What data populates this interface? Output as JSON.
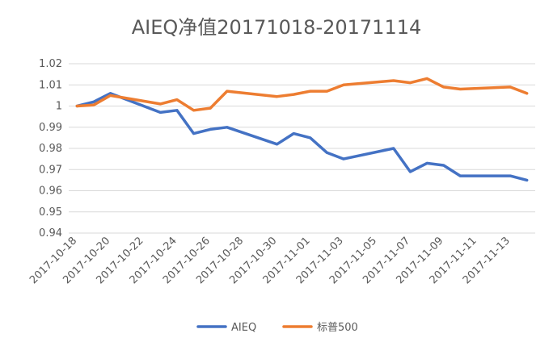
{
  "chart_data": {
    "type": "line",
    "title": "AIEQ净值20171018-20171114",
    "xlabel": "",
    "ylabel": "",
    "ylim": [
      0.94,
      1.02
    ],
    "y_ticks": [
      "0.94",
      "0.95",
      "0.96",
      "0.97",
      "0.98",
      "0.99",
      "1",
      "1.01",
      "1.02"
    ],
    "x_tick_labels": [
      "2017-10-18",
      "2017-10-20",
      "2017-10-22",
      "2017-10-24",
      "2017-10-26",
      "2017-10-28",
      "2017-10-30",
      "2017-11-01",
      "2017-11-03",
      "2017-11-05",
      "2017-11-07",
      "2017-11-09",
      "2017-11-11",
      "2017-11-13"
    ],
    "x": [
      "2017-10-18",
      "2017-10-19",
      "2017-10-20",
      "2017-10-23",
      "2017-10-24",
      "2017-10-25",
      "2017-10-26",
      "2017-10-27",
      "2017-10-30",
      "2017-10-31",
      "2017-11-01",
      "2017-11-02",
      "2017-11-03",
      "2017-11-06",
      "2017-11-07",
      "2017-11-08",
      "2017-11-09",
      "2017-11-10",
      "2017-11-13",
      "2017-11-14"
    ],
    "grid": true,
    "legend_position": "bottom",
    "series": [
      {
        "name": "AIEQ",
        "color": "#4472C4",
        "values": [
          1.0,
          1.002,
          1.006,
          0.997,
          0.998,
          0.987,
          0.989,
          0.99,
          0.982,
          0.987,
          0.985,
          0.978,
          0.975,
          0.98,
          0.969,
          0.973,
          0.972,
          0.967,
          0.967,
          0.965
        ]
      },
      {
        "name": "标普500",
        "color": "#ED7D31",
        "values": [
          1.0,
          1.0005,
          1.005,
          1.001,
          1.003,
          0.998,
          0.999,
          1.007,
          1.0045,
          1.0055,
          1.007,
          1.007,
          1.01,
          1.012,
          1.011,
          1.013,
          1.009,
          1.008,
          1.009,
          1.006
        ]
      }
    ]
  }
}
